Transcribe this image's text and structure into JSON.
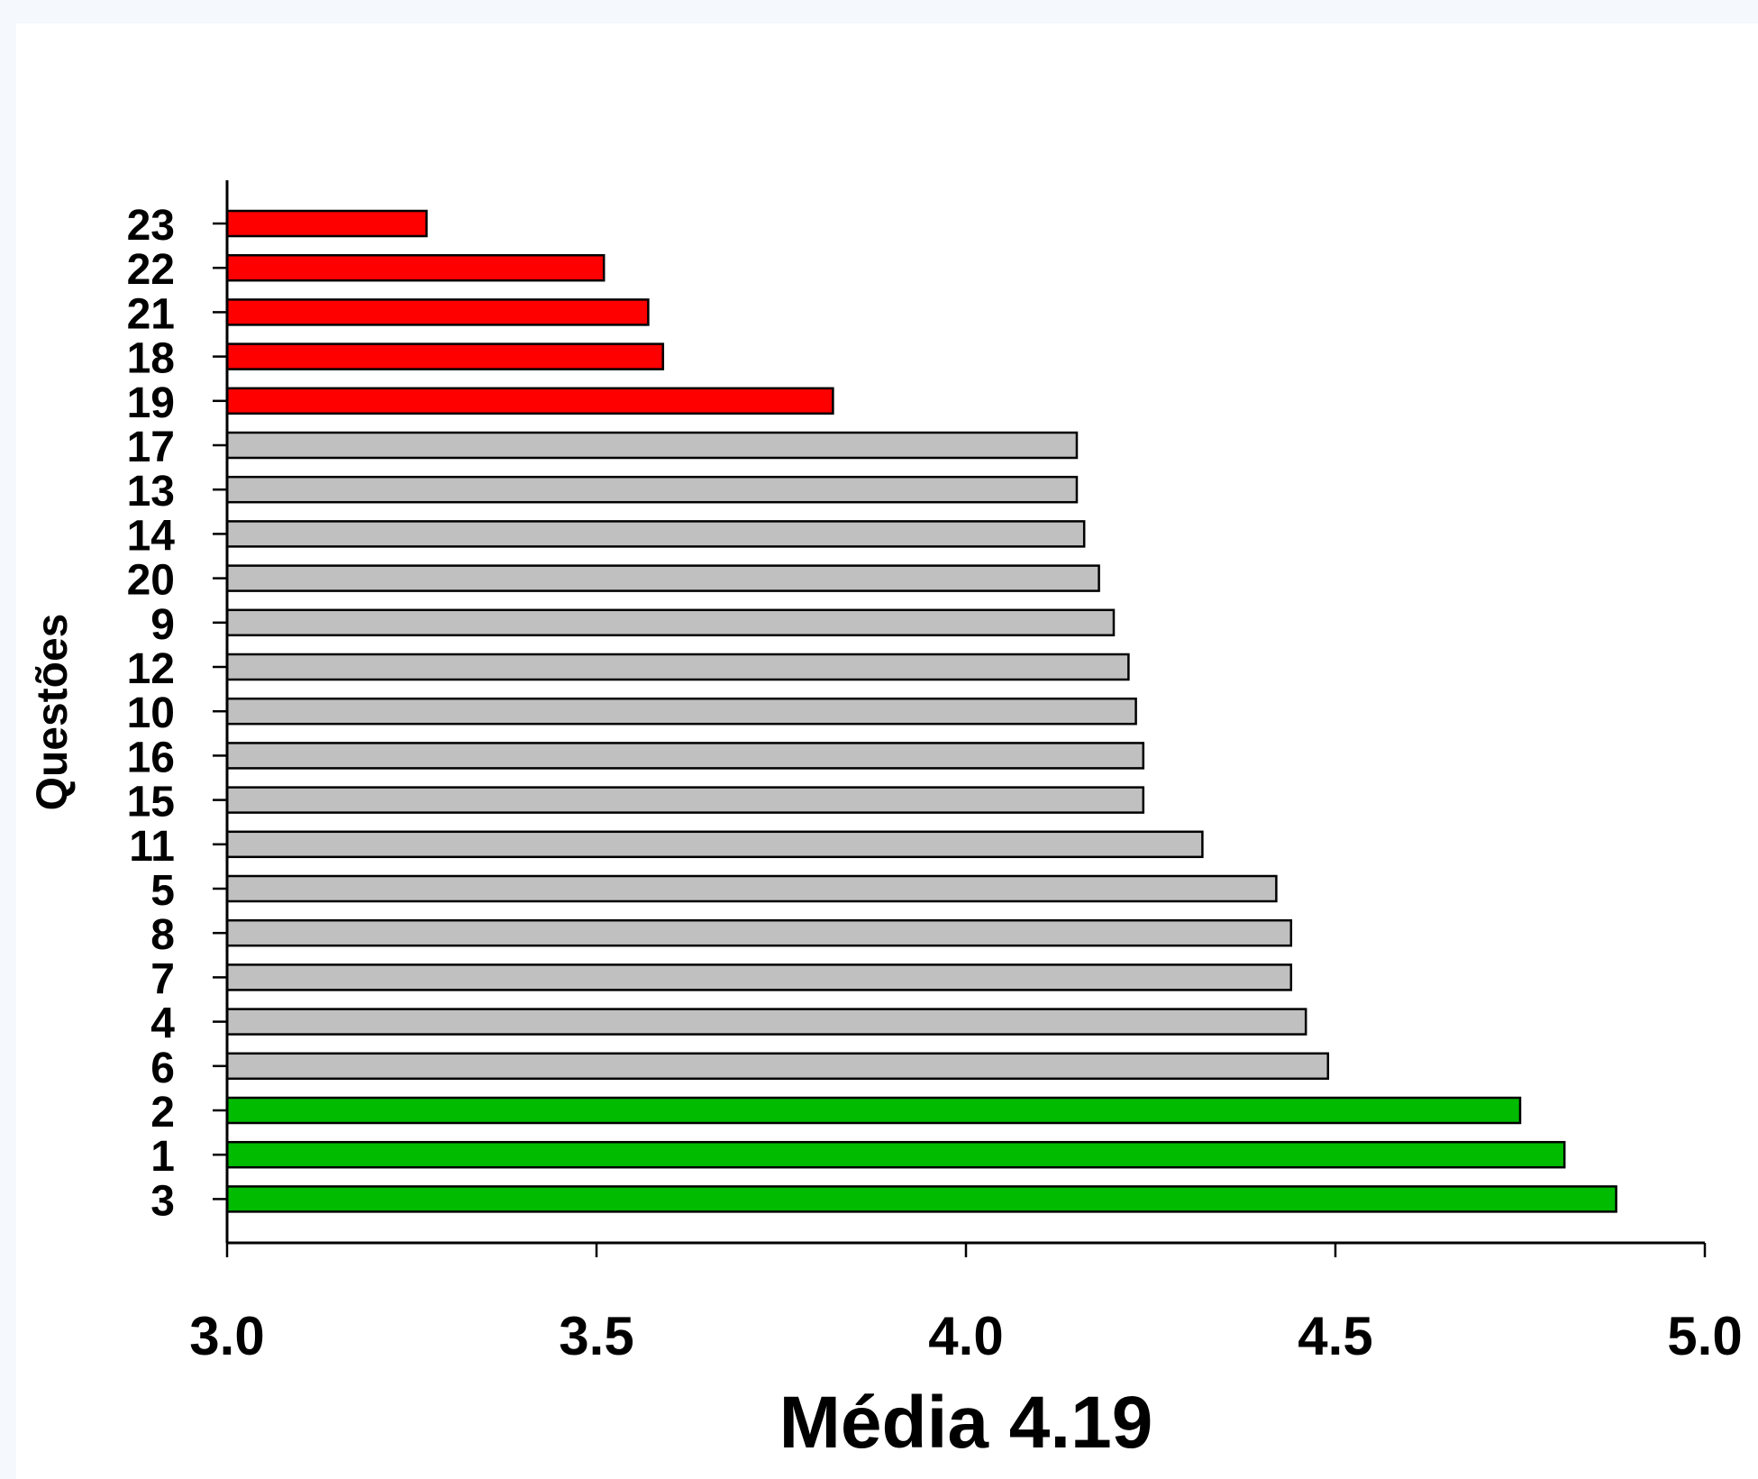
{
  "chart_data": {
    "type": "bar",
    "orientation": "horizontal",
    "title": "",
    "xlabel": "Média 4.19",
    "ylabel": "Questões",
    "xlim": [
      3.0,
      5.0
    ],
    "xticks": [
      "3.0",
      "3.5",
      "4.0",
      "4.5",
      "5.0"
    ],
    "grid": false,
    "legend": "none",
    "categories": [
      "23",
      "22",
      "21",
      "18",
      "19",
      "17",
      "13",
      "14",
      "20",
      "9",
      "12",
      "10",
      "16",
      "15",
      "11",
      "5",
      "8",
      "7",
      "4",
      "6",
      "2",
      "1",
      "3"
    ],
    "values": [
      3.27,
      3.51,
      3.57,
      3.59,
      3.82,
      4.15,
      4.15,
      4.16,
      4.18,
      4.2,
      4.22,
      4.23,
      4.24,
      4.24,
      4.32,
      4.42,
      4.44,
      4.44,
      4.46,
      4.49,
      4.75,
      4.81,
      4.88
    ],
    "bar_groups": [
      "low",
      "low",
      "low",
      "low",
      "low",
      "mid",
      "mid",
      "mid",
      "mid",
      "mid",
      "mid",
      "mid",
      "mid",
      "mid",
      "mid",
      "mid",
      "mid",
      "mid",
      "mid",
      "mid",
      "high",
      "high",
      "high"
    ],
    "colors": {
      "low": "#ff0000",
      "mid": "#c0c0c0",
      "high": "#00bb00",
      "outline": "#000000",
      "axis": "#000000"
    }
  }
}
